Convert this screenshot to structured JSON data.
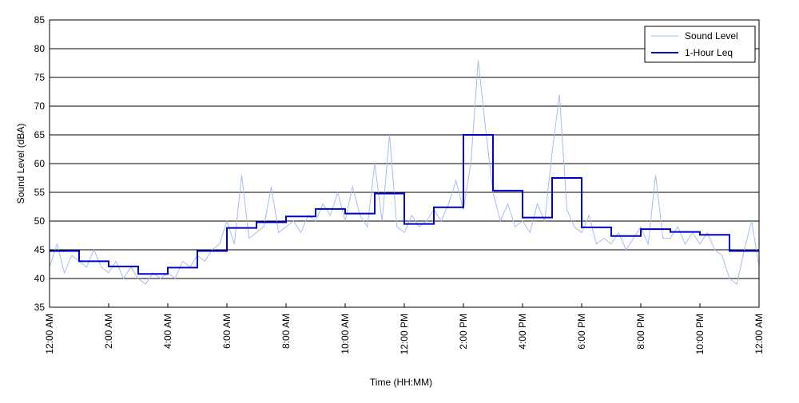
{
  "chart_data": {
    "type": "line",
    "xlabel": "Time (HH:MM)",
    "ylabel": "Sound Level (dBA)",
    "xlim": [
      0,
      24
    ],
    "ylim": [
      35,
      85
    ],
    "xticks": [
      {
        "value": 0,
        "label": "12:00 AM"
      },
      {
        "value": 2,
        "label": "2:00 AM"
      },
      {
        "value": 4,
        "label": "4:00 AM"
      },
      {
        "value": 6,
        "label": "6:00 AM"
      },
      {
        "value": 8,
        "label": "8:00 AM"
      },
      {
        "value": 10,
        "label": "10:00 AM"
      },
      {
        "value": 12,
        "label": "12:00 PM"
      },
      {
        "value": 14,
        "label": "2:00 PM"
      },
      {
        "value": 16,
        "label": "4:00 PM"
      },
      {
        "value": 18,
        "label": "6:00 PM"
      },
      {
        "value": 20,
        "label": "8:00 PM"
      },
      {
        "value": 22,
        "label": "10:00 PM"
      },
      {
        "value": 24,
        "label": "12:00 AM"
      }
    ],
    "yticks": [
      35,
      40,
      45,
      50,
      55,
      60,
      65,
      70,
      75,
      80,
      85
    ],
    "grid": "y",
    "legend": "upper right",
    "series": [
      {
        "name": "Sound Level",
        "color": "#a6bdf2",
        "drawstyle": "default",
        "x": [
          0,
          0.25,
          0.5,
          0.75,
          1,
          1.25,
          1.5,
          1.75,
          2,
          2.25,
          2.5,
          2.75,
          3,
          3.25,
          3.5,
          3.75,
          4,
          4.25,
          4.5,
          4.75,
          5,
          5.25,
          5.5,
          5.75,
          6,
          6.25,
          6.5,
          6.75,
          7,
          7.25,
          7.5,
          7.75,
          8,
          8.25,
          8.5,
          8.75,
          9,
          9.25,
          9.5,
          9.75,
          10,
          10.25,
          10.5,
          10.75,
          11,
          11.25,
          11.5,
          11.75,
          12,
          12.25,
          12.5,
          12.75,
          13,
          13.25,
          13.5,
          13.75,
          14,
          14.25,
          14.5,
          14.75,
          15,
          15.25,
          15.5,
          15.75,
          16,
          16.25,
          16.5,
          16.75,
          17,
          17.25,
          17.5,
          17.75,
          18,
          18.25,
          18.5,
          18.75,
          19,
          19.25,
          19.5,
          19.75,
          20,
          20.25,
          20.5,
          20.75,
          21,
          21.25,
          21.5,
          21.75,
          22,
          22.25,
          22.5,
          22.75,
          23,
          23.25,
          23.5,
          23.75,
          24
        ],
        "values": [
          42,
          46,
          41,
          44,
          43,
          42,
          45,
          42,
          41,
          43,
          40,
          42,
          40,
          39,
          41,
          40,
          41,
          40,
          43,
          42,
          44,
          43,
          45,
          46,
          50,
          46,
          58,
          47,
          48,
          49,
          56,
          48,
          49,
          50,
          48,
          51,
          50,
          53,
          51,
          55,
          50,
          56,
          51,
          49,
          60,
          50,
          65,
          49,
          48,
          51,
          49,
          50,
          52,
          50,
          53,
          57,
          52,
          60,
          78,
          66,
          55,
          50,
          53,
          49,
          50,
          48,
          53,
          50,
          62,
          72,
          52,
          49,
          48,
          51,
          46,
          47,
          46,
          48,
          45,
          47,
          49,
          46,
          58,
          47,
          47,
          49,
          46,
          48,
          46,
          48,
          45,
          44,
          40,
          39,
          45,
          50,
          42
        ]
      },
      {
        "name": "1-Hour Leq",
        "color": "#0000c8",
        "drawstyle": "steps-post",
        "x": [
          0,
          1,
          2,
          3,
          4,
          5,
          6,
          7,
          8,
          9,
          10,
          11,
          12,
          13,
          14,
          15,
          16,
          17,
          18,
          19,
          20,
          21,
          22,
          23
        ],
        "values": [
          44.8,
          43,
          42.1,
          40.8,
          41.9,
          44.8,
          48.8,
          49.8,
          50.8,
          52.1,
          51.3,
          54.8,
          49.5,
          52.4,
          65,
          55.3,
          50.6,
          57.5,
          48.9,
          47.4,
          48.6,
          48.1,
          47.6,
          44.8
        ]
      }
    ]
  }
}
